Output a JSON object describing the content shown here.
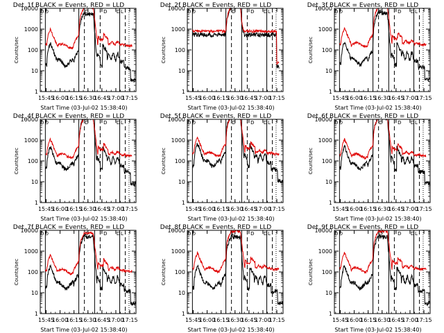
{
  "chart_data": {
    "type": "line",
    "grid_layout": "3x3",
    "colors": {
      "events": "#000000",
      "lld": "#e00000",
      "axis": "#000000",
      "background": "#ffffff"
    },
    "shared": {
      "ylabel": "Counts/sec",
      "xlabel": "Start Time (03-Jul-02 15:38:40)",
      "x_ticks": [
        "15:45",
        "16:00",
        "16:15",
        "16:30",
        "16:45",
        "17:00",
        "17:15"
      ],
      "x_tick_minutes": [
        6.33,
        21.33,
        36.33,
        51.33,
        66.33,
        81.33,
        96.33
      ],
      "y_scale": "log",
      "ylim": [
        1,
        10000
      ],
      "y_ticks": [
        "1",
        "10",
        "100",
        "1000",
        "10000"
      ],
      "xlim_minutes": [
        0,
        103
      ],
      "top_markers": [
        "D",
        "D",
        "D",
        "D",
        "D",
        "L"
      ],
      "top_marker_minutes": [
        2,
        7,
        50,
        70,
        84,
        88
      ],
      "solid_vlines_minutes": [
        5.5,
        41.5,
        58.5,
        85.5
      ],
      "dashed_vlines_minutes": [
        47.5,
        64.5,
        91.5
      ],
      "dotted_vlines_minutes": [
        95.5
      ],
      "series_names": [
        "Events",
        "LLD"
      ]
    },
    "panels": [
      {
        "title": "Det_1f BLACK = Events, RED = LLD",
        "events_scale": 0.22,
        "lld_scale": 0.9,
        "flat": false
      },
      {
        "title": "Det_2f BLACK = Events, RED = LLD",
        "events_scale": 3.0,
        "lld_scale": 4.0,
        "flat": true
      },
      {
        "title": "Det_3f BLACK = Events, RED = LLD",
        "events_scale": 0.25,
        "lld_scale": 1.0,
        "flat": false
      },
      {
        "title": "Det_4f BLACK = Events, RED = LLD",
        "events_scale": 0.5,
        "lld_scale": 1.0,
        "flat": false
      },
      {
        "title": "Det_5f BLACK = Events, RED = LLD",
        "events_scale": 0.7,
        "lld_scale": 1.2,
        "flat": false
      },
      {
        "title": "Det_6f BLACK = Events, RED = LLD",
        "events_scale": 0.5,
        "lld_scale": 1.0,
        "flat": false
      },
      {
        "title": "Det_7f BLACK = Events, RED = LLD",
        "events_scale": 0.2,
        "lld_scale": 0.6,
        "flat": false
      },
      {
        "title": "Det_8f BLACK = Events, RED = LLD",
        "events_scale": 0.2,
        "lld_scale": 0.75,
        "flat": false
      },
      {
        "title": "Det_9f BLACK = Events, RED = LLD",
        "events_scale": 0.2,
        "lld_scale": 0.75,
        "flat": false
      }
    ]
  }
}
